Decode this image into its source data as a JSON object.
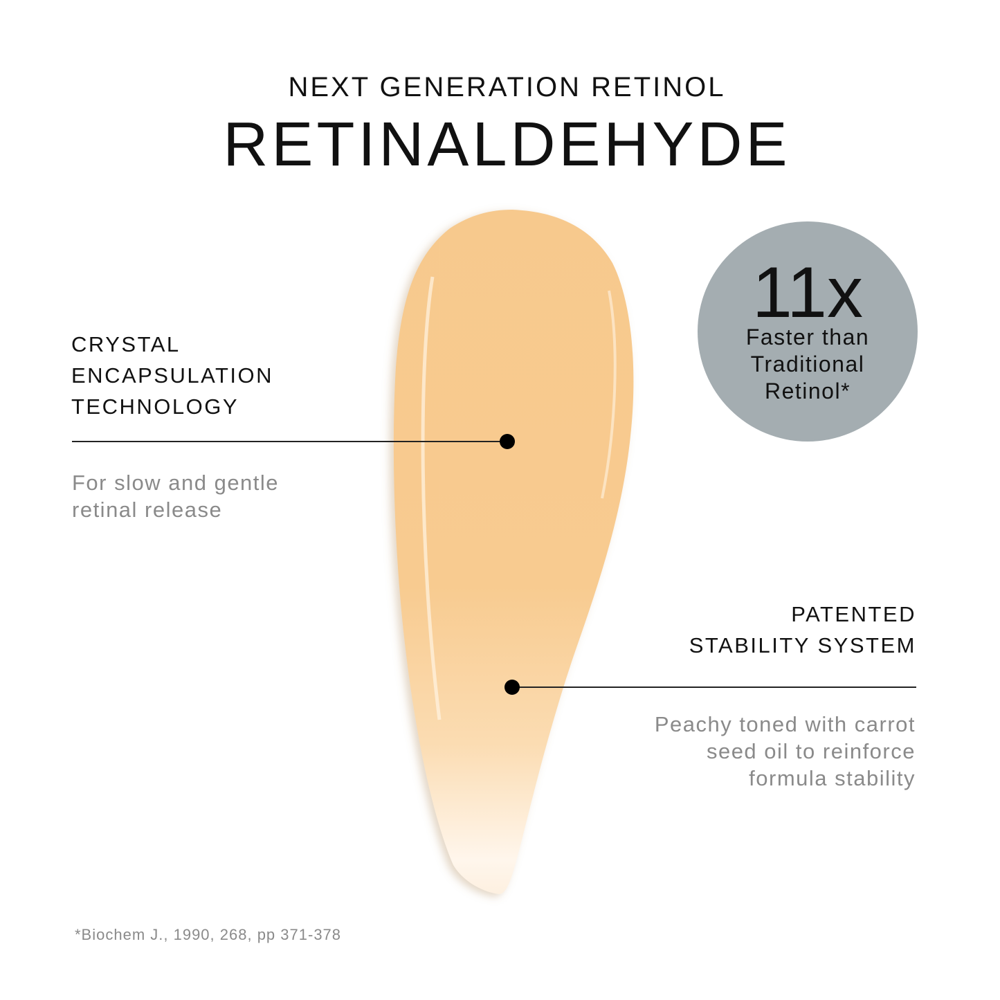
{
  "header": {
    "supertitle": "NEXT GENERATION RETINOL",
    "title": "RETINALDEHYDE"
  },
  "callout_left": {
    "heading_lines": [
      "CRYSTAL",
      "ENCAPSULATION",
      "TECHNOLOGY"
    ],
    "description_lines": [
      "For slow and gentle",
      "retinal release"
    ]
  },
  "callout_right": {
    "heading_lines": [
      "PATENTED",
      "STABILITY SYSTEM"
    ],
    "description_lines": [
      "Peachy toned with carrot",
      "seed oil to reinforce",
      "formula stability"
    ]
  },
  "badge": {
    "value": "11x",
    "lines": [
      "Faster than",
      "Traditional",
      "Retinol*"
    ],
    "color": "#a4adb1"
  },
  "footnote": "*Biochem J., 1990, 268, pp 371-378",
  "colors": {
    "swatch": "#f8c98a",
    "swatch_highlight": "#fff4e6",
    "secondary_text": "#8a8a8a"
  }
}
